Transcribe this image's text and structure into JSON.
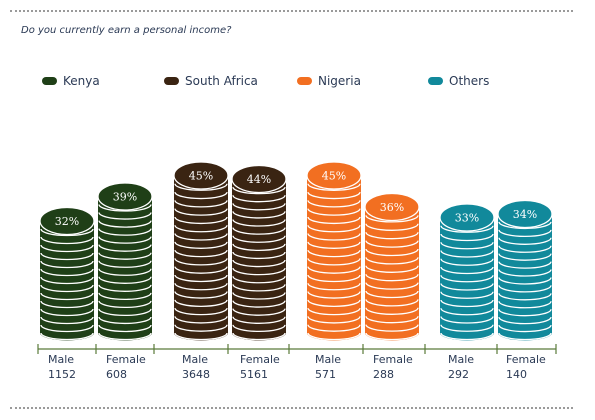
{
  "title": "Do you currently earn a personal income?",
  "chart_data": {
    "type": "bar",
    "series_colors": {
      "Kenya": "#1f3f17",
      "South Africa": "#3a2412",
      "Nigeria": "#f26f21",
      "Others": "#11899b"
    },
    "legend": [
      {
        "name": "Kenya",
        "color": "#1f3f17"
      },
      {
        "name": "South Africa",
        "color": "#3a2412"
      },
      {
        "name": "Nigeria",
        "color": "#f26f21"
      },
      {
        "name": "Others",
        "color": "#11899b"
      }
    ],
    "legend_position": "top",
    "bars": [
      {
        "group": "Kenya",
        "label": "Male",
        "n": "1152",
        "value": 32,
        "value_label": "32%",
        "color": "#1f3f17"
      },
      {
        "group": "Kenya",
        "label": "Female",
        "n": "608",
        "value": 39,
        "value_label": "39%",
        "color": "#1f3f17"
      },
      {
        "group": "South Africa",
        "label": "Male",
        "n": "3648",
        "value": 45,
        "value_label": "45%",
        "color": "#3a2412"
      },
      {
        "group": "South Africa",
        "label": "Female",
        "n": "5161",
        "value": 44,
        "value_label": "44%",
        "color": "#3a2412"
      },
      {
        "group": "Nigeria",
        "label": "Male",
        "n": "571",
        "value": 45,
        "value_label": "45%",
        "color": "#f26f21"
      },
      {
        "group": "Nigeria",
        "label": "Female",
        "n": "288",
        "value": 36,
        "value_label": "36%",
        "color": "#f26f21"
      },
      {
        "group": "Others",
        "label": "Male",
        "n": "292",
        "value": 33,
        "value_label": "33%",
        "color": "#11899b"
      },
      {
        "group": "Others",
        "label": "Female",
        "n": "140",
        "value": 34,
        "value_label": "34%",
        "color": "#11899b"
      }
    ],
    "axis_color": "#5a7a3a",
    "title": "Do you currently earn a personal income?"
  }
}
